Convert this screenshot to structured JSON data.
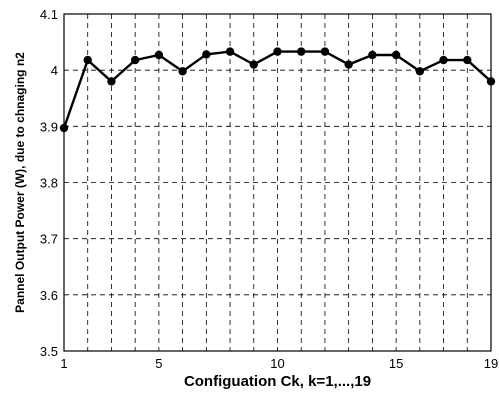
{
  "chart_data": {
    "type": "line",
    "title": "",
    "xlabel": "Configuation  Ck, k=1,...,19",
    "ylabel": "Pannel Output Power (W), due to chnaging n2",
    "xlim": [
      1,
      19
    ],
    "ylim": [
      3.5,
      4.1
    ],
    "x_ticks": [
      1,
      5,
      10,
      15,
      19
    ],
    "y_ticks": [
      3.5,
      3.6,
      3.7,
      3.8,
      3.9,
      4,
      4.1
    ],
    "grid": true,
    "grid_style": "dashed",
    "series": [
      {
        "color": "#000000",
        "marker": "circle",
        "x": [
          1,
          2,
          3,
          4,
          5,
          6,
          7,
          8,
          9,
          10,
          11,
          12,
          13,
          14,
          15,
          16,
          17,
          18,
          19
        ],
        "values": [
          3.897,
          4.018,
          3.98,
          4.018,
          4.027,
          3.998,
          4.028,
          4.033,
          4.01,
          4.033,
          4.033,
          4.033,
          4.01,
          4.027,
          4.027,
          3.998,
          4.018,
          4.018,
          3.98
        ]
      }
    ]
  }
}
